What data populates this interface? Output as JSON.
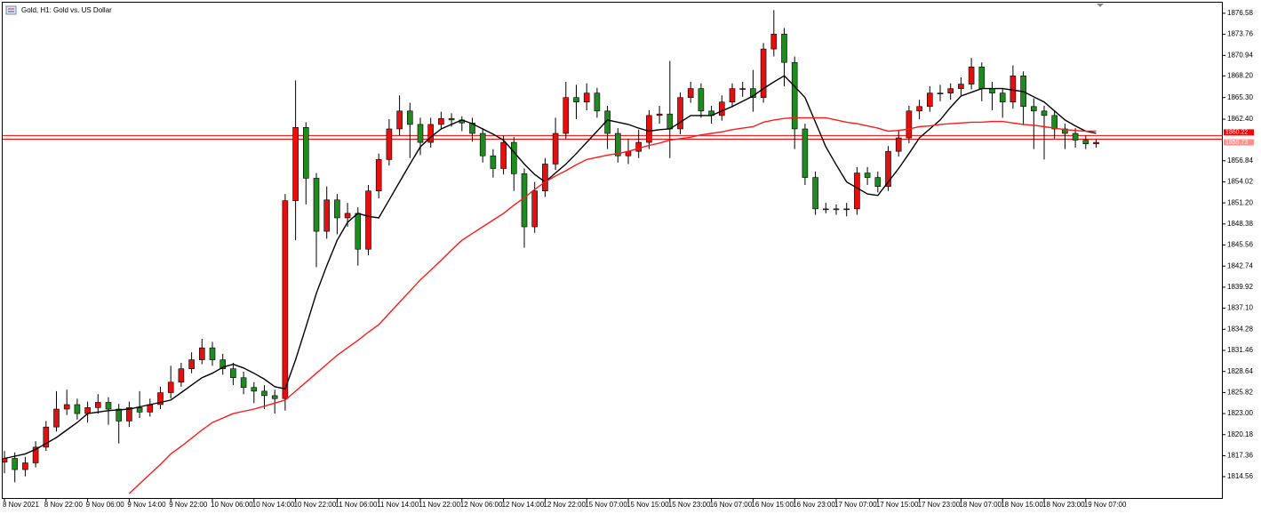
{
  "chart_data": {
    "type": "candlestick",
    "title": "Gold, H1:  Gold vs. US Dollar",
    "categories": [
      "8 Nov 2021",
      null,
      null,
      null,
      "8 Nov 22:00",
      null,
      null,
      null,
      "9 Nov 06:00",
      null,
      null,
      null,
      "9 Nov 14:00",
      null,
      null,
      null,
      "9 Nov 22:00",
      null,
      null,
      null,
      "10 Nov 06:00",
      null,
      null,
      null,
      "10 Nov 14:00",
      null,
      null,
      null,
      "10 Nov 22:00",
      null,
      null,
      null,
      "11 Nov 06:00",
      null,
      null,
      null,
      "11 Nov 14:00",
      null,
      null,
      null,
      "11 Nov 22:00",
      null,
      null,
      null,
      "12 Nov 06:00",
      null,
      null,
      null,
      "12 Nov 14:00",
      null,
      null,
      null,
      "12 Nov 22:00",
      null,
      null,
      null,
      "15 Nov 07:00",
      null,
      null,
      null,
      "15 Nov 15:00",
      null,
      null,
      null,
      "15 Nov 23:00",
      null,
      null,
      null,
      "16 Nov 07:00",
      null,
      null,
      null,
      "16 Nov 15:00",
      null,
      null,
      null,
      "16 Nov 23:00",
      null,
      null,
      null,
      "17 Nov 07:00",
      null,
      null,
      null,
      "17 Nov 15:00",
      null,
      null,
      null,
      "17 Nov 23:00",
      null,
      null,
      null,
      "18 Nov 07:00",
      null,
      null,
      null,
      "18 Nov 15:00",
      null,
      null,
      null,
      "18 Nov 23:00",
      null,
      null,
      null,
      "19 Nov 07:00",
      null
    ],
    "open": [
      1816.5,
      1817.0,
      1815.5,
      1816.4,
      1818.5,
      1821.2,
      1823.6,
      1824.2,
      1823.0,
      1823.8,
      1824.5,
      1823.6,
      1822.0,
      1823.8,
      1823.2,
      1824.2,
      1825.8,
      1827.2,
      1829.0,
      1830.2,
      1831.8,
      1830.2,
      1829.0,
      1827.8,
      1826.5,
      1826.0,
      1825.4,
      1825.0,
      1851.5,
      1861.3,
      1854.5,
      1847.4,
      1851.6,
      1849.2,
      1849.8,
      1845.0,
      1852.8,
      1857.0,
      1861.1,
      1863.5,
      1861.7,
      1859.3,
      1861.7,
      1862.5,
      1862.3,
      1861.9,
      1860.5,
      1857.5,
      1855.8,
      1859.3,
      1855.1,
      1848.0,
      1852.8,
      1856.4,
      1860.5,
      1865.3,
      1864.7,
      1865.9,
      1863.5,
      1860.5,
      1857.5,
      1858.1,
      1859.3,
      1862.9,
      1863.1,
      1861.1,
      1865.3,
      1866.5,
      1863.5,
      1862.9,
      1864.7,
      1866.5,
      1866.5,
      1865.3,
      1871.8,
      1873.8,
      1870.0,
      1861.1,
      1854.6,
      1850.4,
      1850.4,
      1850.3,
      1850.4,
      1855.2,
      1854.6,
      1853.4,
      1858.1,
      1859.9,
      1863.5,
      1864.1,
      1865.9,
      1865.9,
      1866.5,
      1867.1,
      1869.4,
      1866.5,
      1865.9,
      1864.7,
      1868.2,
      1864.1,
      1863.5,
      1862.9,
      1861.1,
      1860.5,
      1859.6,
      1859.1
    ],
    "high": [
      1818.0,
      1817.8,
      1817.2,
      1819.3,
      1822.0,
      1826.0,
      1826.2,
      1825.0,
      1824.6,
      1825.6,
      1825.2,
      1824.3,
      1824.6,
      1826.0,
      1825.0,
      1826.6,
      1829.4,
      1829.8,
      1831.2,
      1833.0,
      1832.6,
      1831.0,
      1829.8,
      1828.6,
      1827.2,
      1826.8,
      1826.2,
      1852.4,
      1867.6,
      1862.0,
      1855.2,
      1853.4,
      1852.4,
      1851.2,
      1850.6,
      1853.6,
      1857.8,
      1862.4,
      1865.6,
      1864.6,
      1862.6,
      1862.6,
      1863.4,
      1863.2,
      1862.8,
      1862.6,
      1861.2,
      1858.4,
      1860.2,
      1860.0,
      1855.8,
      1854.0,
      1857.2,
      1862.6,
      1867.4,
      1867.0,
      1867.2,
      1866.6,
      1864.2,
      1861.2,
      1859.8,
      1861.0,
      1863.6,
      1864.2,
      1870.2,
      1866.0,
      1867.4,
      1867.2,
      1864.2,
      1865.6,
      1867.2,
      1867.4,
      1869.0,
      1872.6,
      1877.0,
      1874.6,
      1870.8,
      1861.8,
      1855.4,
      1851.2,
      1851.0,
      1851.2,
      1856.0,
      1856.0,
      1855.4,
      1858.8,
      1861.0,
      1864.2,
      1865.0,
      1866.8,
      1867.0,
      1867.2,
      1868.0,
      1870.6,
      1870.0,
      1867.4,
      1866.6,
      1869.6,
      1868.8,
      1865.2,
      1864.2,
      1863.6,
      1861.8,
      1861.2,
      1860.2,
      1859.8
    ],
    "low": [
      1815.0,
      1813.8,
      1814.6,
      1815.8,
      1818.0,
      1820.6,
      1822.8,
      1822.2,
      1821.8,
      1823.0,
      1821.5,
      1819.0,
      1821.2,
      1822.4,
      1822.6,
      1823.6,
      1825.0,
      1826.6,
      1828.4,
      1829.6,
      1829.4,
      1828.2,
      1826.8,
      1825.6,
      1824.4,
      1823.6,
      1823.0,
      1823.4,
      1846.2,
      1851.0,
      1842.6,
      1846.4,
      1847.0,
      1848.0,
      1842.8,
      1844.2,
      1851.8,
      1856.2,
      1860.2,
      1857.2,
      1857.6,
      1858.6,
      1861.0,
      1861.4,
      1860.8,
      1859.4,
      1856.6,
      1854.6,
      1855.0,
      1852.8,
      1845.2,
      1847.2,
      1852.0,
      1855.6,
      1859.8,
      1862.4,
      1863.6,
      1862.6,
      1858.4,
      1856.6,
      1856.4,
      1857.2,
      1858.4,
      1861.8,
      1857.2,
      1860.4,
      1864.6,
      1862.6,
      1861.8,
      1862.2,
      1864.0,
      1865.4,
      1863.4,
      1864.6,
      1870.8,
      1866.8,
      1858.4,
      1853.6,
      1849.6,
      1849.8,
      1849.6,
      1849.4,
      1849.6,
      1853.6,
      1852.6,
      1852.8,
      1857.4,
      1859.2,
      1862.4,
      1863.4,
      1864.8,
      1865.0,
      1865.6,
      1866.4,
      1864.8,
      1863.6,
      1862.6,
      1863.8,
      1861.6,
      1858.4,
      1857.0,
      1859.8,
      1858.4,
      1858.6,
      1858.4,
      1858.6
    ],
    "close": [
      1817.0,
      1815.5,
      1816.4,
      1818.5,
      1821.2,
      1823.6,
      1824.2,
      1823.0,
      1823.8,
      1824.5,
      1823.6,
      1822.0,
      1823.8,
      1823.2,
      1824.2,
      1825.8,
      1827.2,
      1829.0,
      1830.2,
      1831.8,
      1830.2,
      1829.0,
      1827.8,
      1826.5,
      1826.0,
      1825.4,
      1825.0,
      1851.5,
      1861.3,
      1854.5,
      1847.4,
      1851.6,
      1849.2,
      1849.8,
      1845.0,
      1852.8,
      1857.0,
      1861.1,
      1863.5,
      1861.7,
      1859.3,
      1861.7,
      1862.5,
      1862.3,
      1861.9,
      1860.5,
      1857.5,
      1855.8,
      1859.3,
      1855.1,
      1848.0,
      1852.8,
      1856.4,
      1860.5,
      1865.3,
      1864.7,
      1865.9,
      1863.5,
      1860.5,
      1857.5,
      1858.1,
      1859.3,
      1862.9,
      1863.1,
      1861.1,
      1865.3,
      1866.5,
      1863.5,
      1862.9,
      1864.7,
      1866.5,
      1866.5,
      1865.3,
      1871.8,
      1873.8,
      1870.0,
      1861.1,
      1854.6,
      1850.4,
      1850.4,
      1850.3,
      1850.4,
      1855.2,
      1854.6,
      1853.4,
      1858.1,
      1859.9,
      1863.5,
      1864.1,
      1865.9,
      1865.9,
      1866.5,
      1867.1,
      1869.4,
      1866.5,
      1865.9,
      1864.7,
      1868.2,
      1864.1,
      1863.5,
      1862.9,
      1861.1,
      1860.5,
      1859.6,
      1859.1,
      1859.3
    ],
    "up_color": "#e41010",
    "down_color": "#1f8a1f",
    "ma_lines": [
      {
        "color": "#000000",
        "values": [
          1817.0,
          1817.3,
          1817.6,
          1818.2,
          1819.0,
          1819.8,
          1820.8,
          1821.8,
          1823.0,
          1823.2,
          1823.4,
          1823.5,
          1823.6,
          1823.9,
          1824.2,
          1824.5,
          1824.8,
          1825.8,
          1826.8,
          1827.8,
          1828.4,
          1829.2,
          1829.6,
          1829.1,
          1828.4,
          1827.6,
          1826.6,
          1826.3,
          1830.2,
          1834.6,
          1839.1,
          1842.8,
          1846.2,
          1848.6,
          1849.8,
          1849.4,
          1849.2,
          1851.6,
          1854.0,
          1856.4,
          1858.7,
          1860.0,
          1861.1,
          1861.7,
          1862.3,
          1861.8,
          1861.1,
          1860.4,
          1859.6,
          1858.0,
          1856.4,
          1855.0,
          1854.0,
          1855.2,
          1856.4,
          1857.8,
          1859.3,
          1860.8,
          1862.3,
          1862.0,
          1861.7,
          1861.2,
          1860.8,
          1861.0,
          1861.1,
          1862.0,
          1862.9,
          1862.9,
          1862.9,
          1863.5,
          1864.1,
          1864.8,
          1865.5,
          1866.5,
          1867.4,
          1868.2,
          1866.8,
          1865.3,
          1862.0,
          1858.7,
          1856.3,
          1854.0,
          1853.2,
          1852.4,
          1852.2,
          1854.0,
          1855.8,
          1857.8,
          1859.9,
          1861.1,
          1862.3,
          1864.0,
          1865.5,
          1866.0,
          1866.5,
          1866.5,
          1866.5,
          1866.3,
          1866.1,
          1865.4,
          1864.7,
          1863.5,
          1862.3,
          1861.5,
          1860.8,
          1860.5
        ]
      },
      {
        "color": "#ff1a1a",
        "values": [
          null,
          null,
          null,
          null,
          null,
          null,
          null,
          null,
          null,
          null,
          null,
          null,
          1812.3,
          1813.6,
          1814.9,
          1816.2,
          1817.6,
          1818.6,
          1819.7,
          1820.8,
          1821.8,
          1822.4,
          1823.0,
          1823.3,
          1823.6,
          1824.0,
          1824.4,
          1824.8,
          1826.0,
          1827.2,
          1828.4,
          1829.6,
          1830.8,
          1831.8,
          1832.8,
          1833.9,
          1834.9,
          1836.4,
          1837.9,
          1839.4,
          1840.9,
          1842.2,
          1843.5,
          1844.9,
          1846.2,
          1847.1,
          1848.0,
          1848.9,
          1849.8,
          1850.9,
          1851.9,
          1853.0,
          1854.0,
          1854.8,
          1855.5,
          1856.3,
          1857.0,
          1857.3,
          1857.6,
          1857.8,
          1858.1,
          1858.5,
          1858.9,
          1859.2,
          1859.6,
          1859.8,
          1860.0,
          1860.3,
          1860.5,
          1860.7,
          1861.0,
          1861.2,
          1861.4,
          1862.0,
          1862.3,
          1862.5,
          1862.6,
          1862.6,
          1862.6,
          1862.6,
          1862.3,
          1862.0,
          1861.8,
          1861.5,
          1861.2,
          1860.8,
          1860.9,
          1861.1,
          1861.4,
          1861.5,
          1861.7,
          1861.8,
          1861.9,
          1862.0,
          1862.0,
          1862.1,
          1862.1,
          1861.9,
          1861.7,
          1861.6,
          1861.4,
          1861.2,
          1861.0,
          1860.9,
          1860.8,
          1860.8
        ]
      }
    ],
    "price_lines": [
      1860.22,
      1859.73
    ],
    "price_line_color": "#ff0000",
    "ylim": [
      1811.7,
      1878.0
    ],
    "yticks": [
      1876.58,
      1873.76,
      1870.94,
      {
        "value": 1868.2,
        "label": "1868.20"
      },
      {
        "value": 1865.3,
        "label": "1865.30"
      },
      {
        "value": 1862.4,
        "label": "1862.40"
      },
      1856.84,
      1854.02,
      {
        "value": 1851.2,
        "label": "1851.20"
      },
      1848.38,
      1845.56,
      1842.74,
      1839.92,
      {
        "value": 1837.1,
        "label": "1837.10"
      },
      1834.28,
      1831.46,
      1828.64,
      1825.82,
      {
        "value": 1823,
        "label": "1823.00"
      },
      1820.18,
      1817.36,
      1814.56
    ]
  }
}
